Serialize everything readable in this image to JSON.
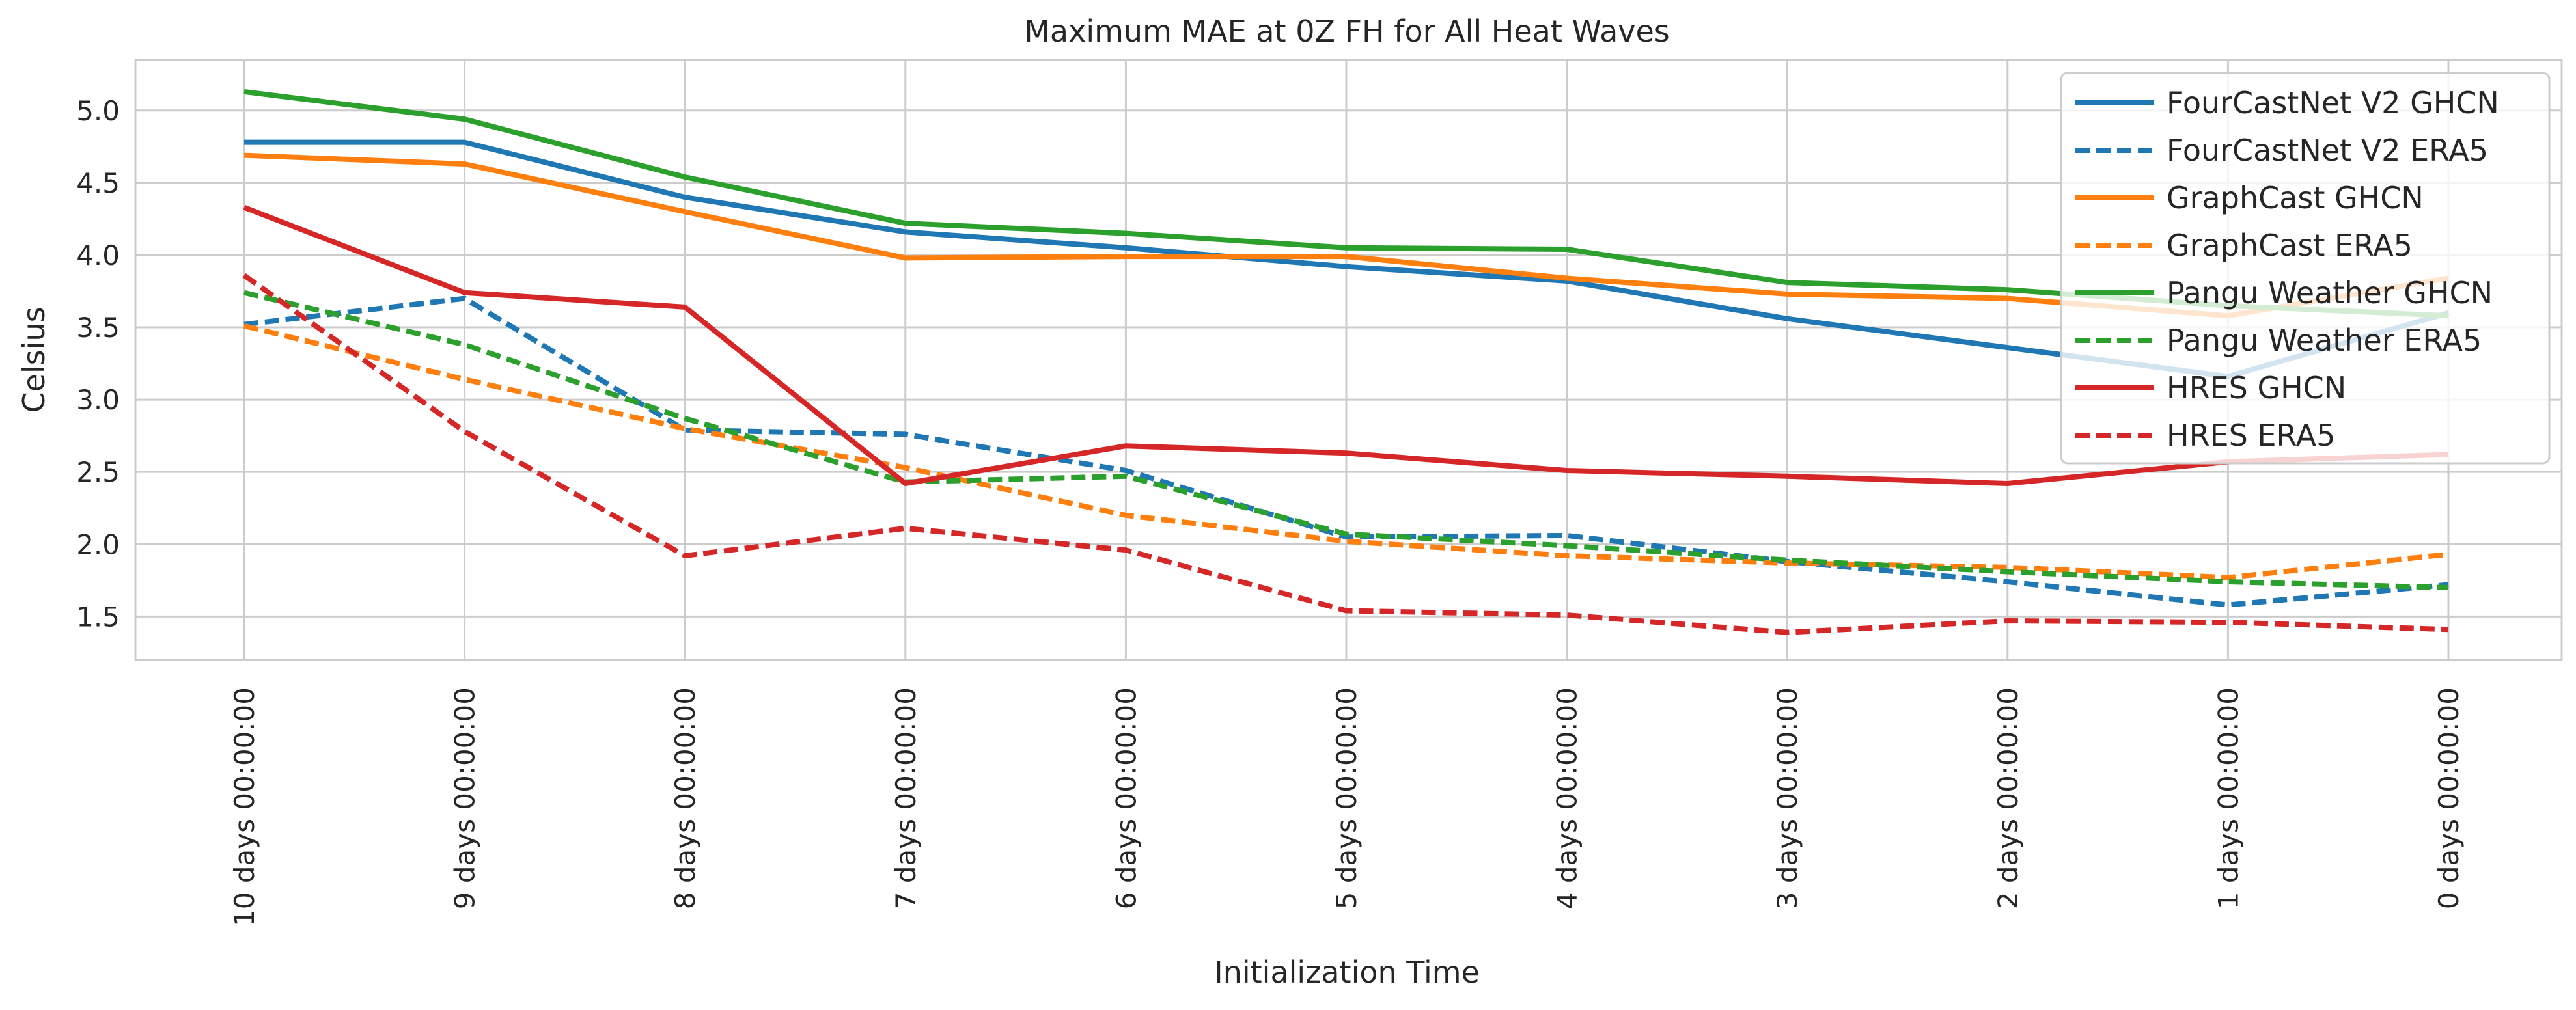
{
  "chart_data": {
    "type": "line",
    "title": "Maximum MAE at 0Z FH for All Heat Waves",
    "xlabel": "Initialization Time",
    "ylabel": "Celsius",
    "ylim": [
      1.2,
      5.35
    ],
    "yticks": [
      "1.5",
      "2.0",
      "2.5",
      "3.0",
      "3.5",
      "4.0",
      "4.5",
      "5.0"
    ],
    "grid": true,
    "legend_position": "top-right",
    "categories": [
      "10 days 00:00:00",
      "9 days 00:00:00",
      "8 days 00:00:00",
      "7 days 00:00:00",
      "6 days 00:00:00",
      "5 days 00:00:00",
      "4 days 00:00:00",
      "3 days 00:00:00",
      "2 days 00:00:00",
      "1 days 00:00:00",
      "0 days 00:00:00"
    ],
    "series": [
      {
        "name": "FourCastNet V2 GHCN",
        "color": "#1f77b4",
        "dashed": false,
        "values": [
          4.78,
          4.78,
          4.4,
          4.16,
          4.05,
          3.92,
          3.82,
          3.56,
          3.36,
          3.16,
          3.6
        ]
      },
      {
        "name": "FourCastNet V2 ERA5",
        "color": "#1f77b4",
        "dashed": true,
        "values": [
          3.52,
          3.7,
          2.79,
          2.76,
          2.51,
          2.05,
          2.06,
          1.88,
          1.74,
          1.58,
          1.72
        ]
      },
      {
        "name": "GraphCast GHCN",
        "color": "#ff7f0e",
        "dashed": false,
        "values": [
          4.69,
          4.63,
          4.3,
          3.98,
          3.99,
          3.99,
          3.84,
          3.73,
          3.7,
          3.58,
          3.84
        ]
      },
      {
        "name": "GraphCast ERA5",
        "color": "#ff7f0e",
        "dashed": true,
        "values": [
          3.51,
          3.14,
          2.8,
          2.53,
          2.2,
          2.02,
          1.92,
          1.87,
          1.84,
          1.77,
          1.93
        ]
      },
      {
        "name": "Pangu Weather GHCN",
        "color": "#2ca02c",
        "dashed": false,
        "values": [
          5.13,
          4.94,
          4.54,
          4.22,
          4.15,
          4.05,
          4.04,
          3.81,
          3.76,
          3.65,
          3.58
        ]
      },
      {
        "name": "Pangu Weather ERA5",
        "color": "#2ca02c",
        "dashed": true,
        "values": [
          3.74,
          3.38,
          2.87,
          2.43,
          2.47,
          2.07,
          1.99,
          1.89,
          1.81,
          1.74,
          1.7
        ]
      },
      {
        "name": "HRES GHCN",
        "color": "#d62728",
        "dashed": false,
        "values": [
          4.33,
          3.74,
          3.64,
          2.42,
          2.68,
          2.63,
          2.51,
          2.47,
          2.42,
          2.57,
          2.62
        ]
      },
      {
        "name": "HRES ERA5",
        "color": "#d62728",
        "dashed": true,
        "values": [
          3.86,
          2.78,
          1.92,
          2.11,
          1.96,
          1.54,
          1.51,
          1.39,
          1.47,
          1.46,
          1.41
        ]
      }
    ]
  }
}
